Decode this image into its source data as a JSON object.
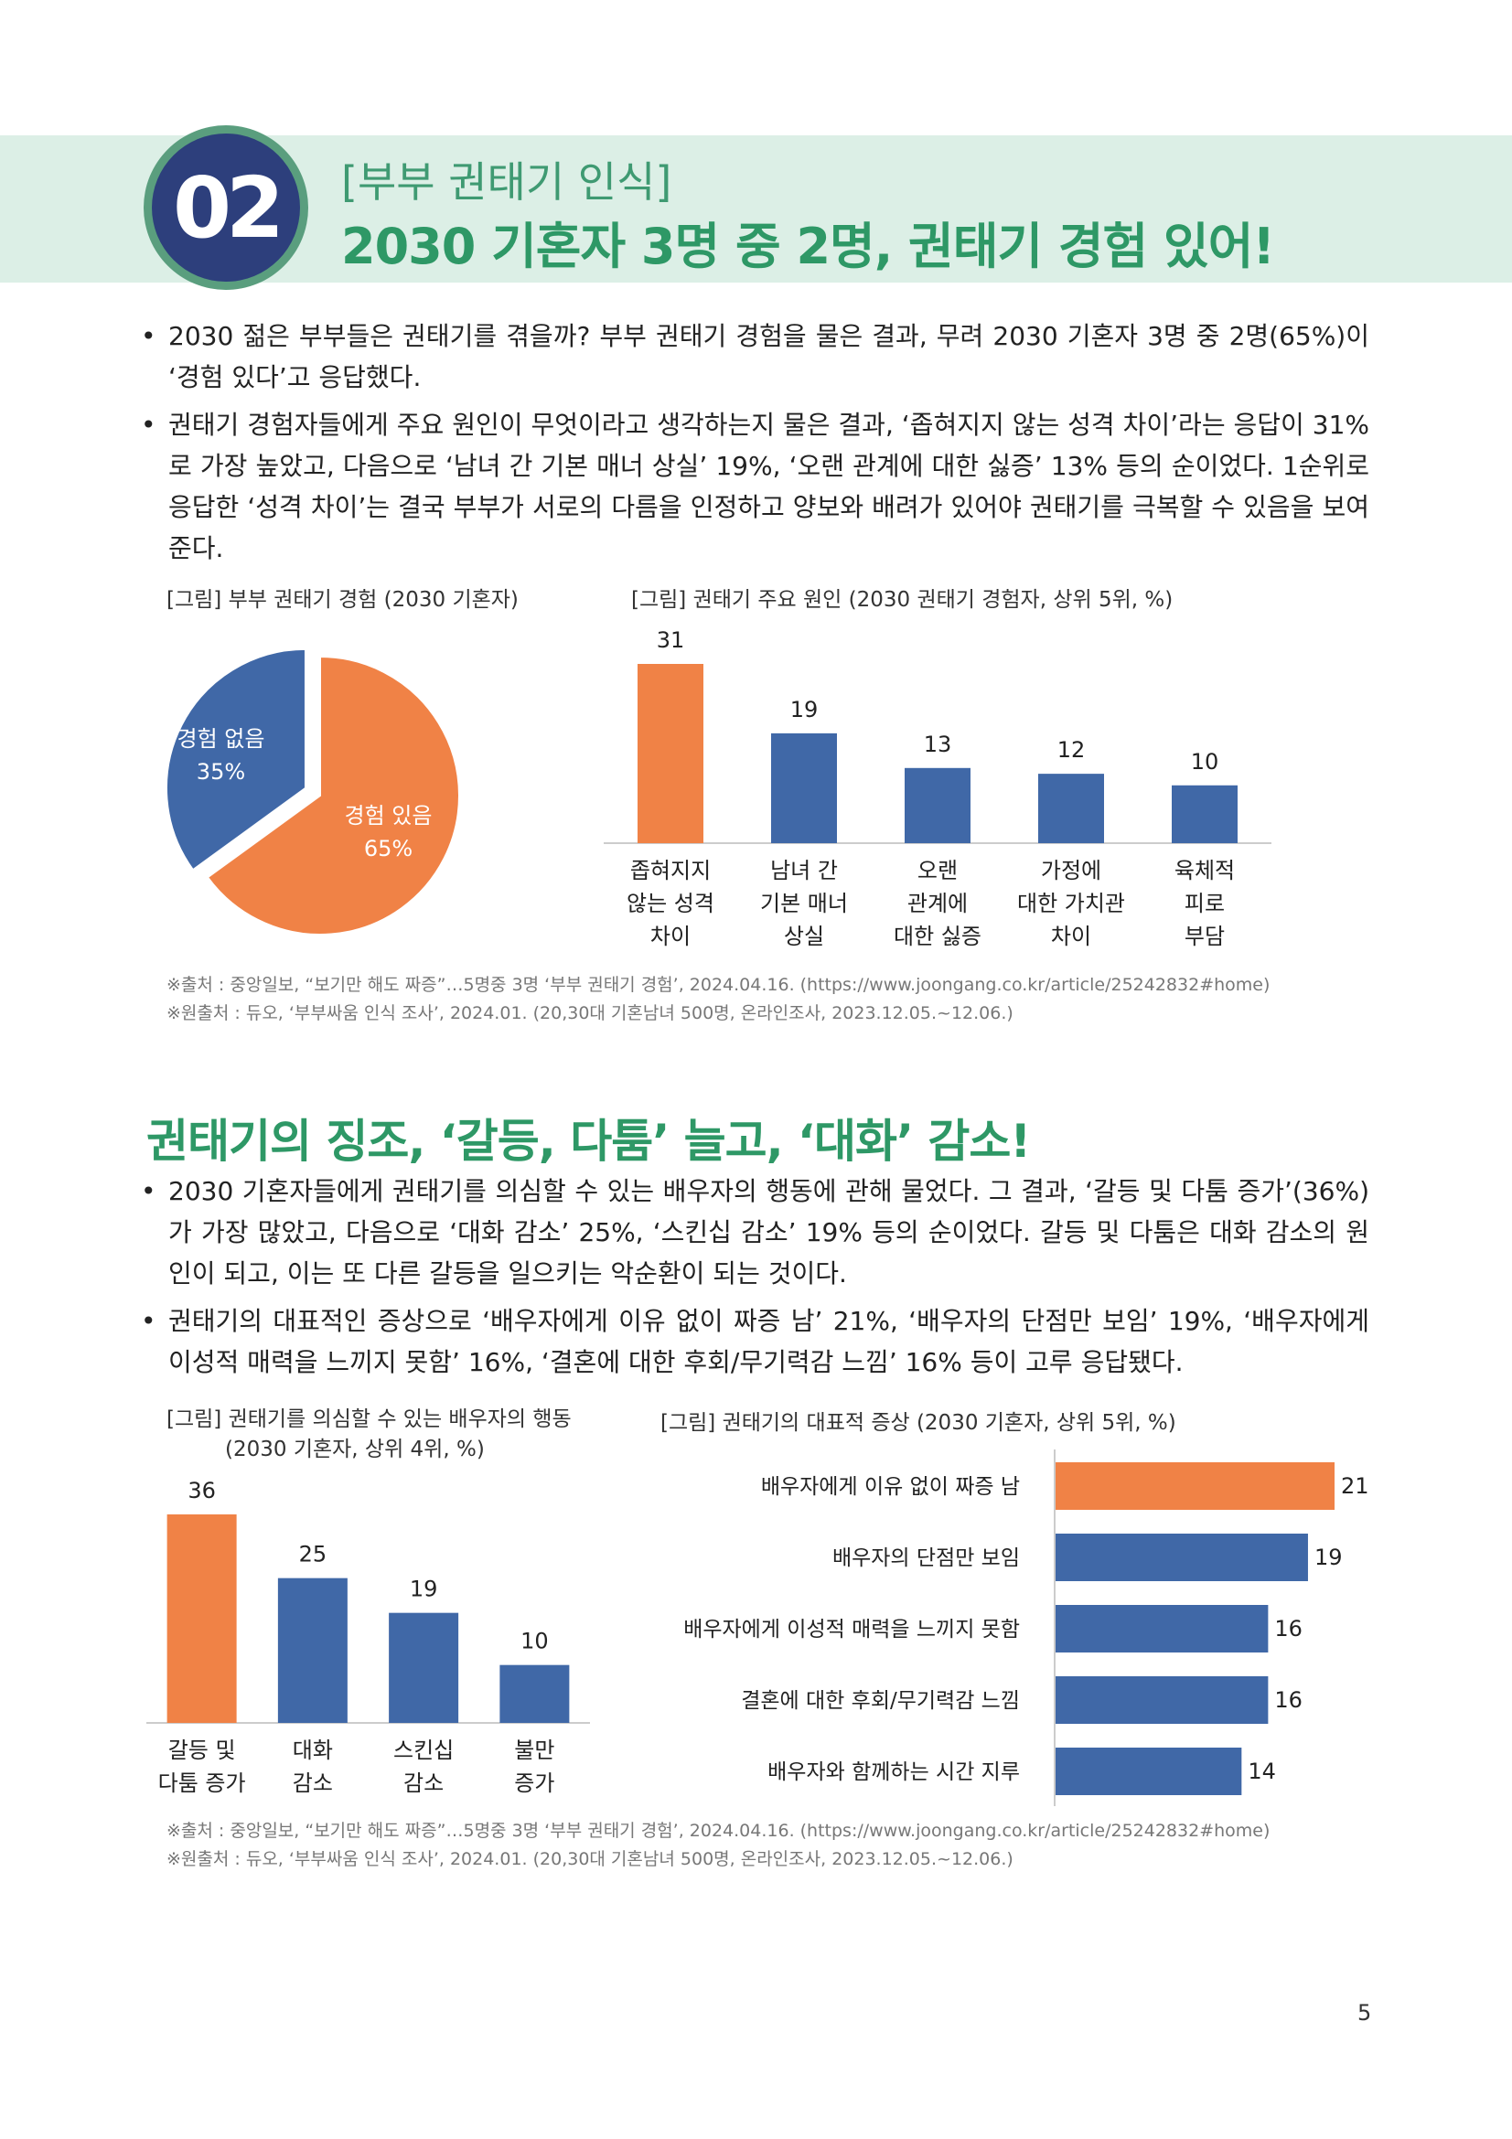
{
  "header": {
    "badge_number": "02",
    "subtitle": "[부부 권태기 인식]",
    "title": "2030 기혼자 3명 중 2명, 권태기 경험 있어!"
  },
  "section1": {
    "bullets": [
      "2030 젊은 부부들은 권태기를 겪을까? 부부 권태기 경험을 물은 결과, 무려 2030 기혼자 3명 중 2명(65%)이 ‘경험 있다’고 응답했다.",
      "권태기 경험자들에게 주요 원인이 무엇이라고 생각하는지 물은 결과, ‘좁혀지지 않는 성격 차이’라는 응답이 31%로 가장 높았고, 다음으로 ‘남녀 간 기본 매너 상실’ 19%, ‘오랜 관계에 대한 싫증’ 13% 등의 순이었다. 1순위로 응답한 ‘성격 차이’는 결국 부부가 서로의 다름을 인정하고 양보와 배려가 있어야 권태기를 극복할 수 있음을 보여준다."
    ],
    "source": [
      "※출처 : 중앙일보, “보기만 해도 짜증”…5명중 3명 ‘부부 권태기 경험’, 2024.04.16. (https://www.joongang.co.kr/article/25242832#home)",
      "※원출처 : 듀오, ‘부부싸움 인식 조사’, 2024.01. (20,30대 기혼남녀 500명, 온라인조사, 2023.12.05.~12.06.)"
    ]
  },
  "section2": {
    "heading": "권태기의 징조, ‘갈등, 다툼’ 늘고, ‘대화’ 감소!",
    "bullets": [
      "2030 기혼자들에게 권태기를 의심할 수 있는 배우자의 행동에 관해 물었다. 그 결과, ‘갈등 및 다툼 증가’(36%)가 가장 많았고, 다음으로 ‘대화 감소’ 25%, ‘스킨십 감소’ 19% 등의 순이었다. 갈등 및 다툼은 대화 감소의 원인이 되고, 이는 또 다른 갈등을 일으키는 악순환이 되는 것이다.",
      "권태기의 대표적인 증상으로 ‘배우자에게 이유 없이 짜증 남’ 21%, ‘배우자의 단점만 보임’ 19%, ‘배우자에게 이성적 매력을 느끼지 못함’ 16%, ‘결혼에 대한 후회/무기력감 느낌’ 16% 등이 고루 응답됐다."
    ],
    "source": [
      "※출처 : 중앙일보, “보기만 해도 짜증”…5명중 3명 ‘부부 권태기 경험’, 2024.04.16. (https://www.joongang.co.kr/article/25242832#home)",
      "※원출처 : 듀오, ‘부부싸움 인식 조사’, 2024.01. (20,30대 기혼남녀 500명, 온라인조사, 2023.12.05.~12.06.)"
    ]
  },
  "page_number": "5",
  "colors": {
    "orange": "#f08246",
    "blue": "#4068a7",
    "green": "#2e9866",
    "band": "#dcefe6",
    "badge": "#2d3f7c"
  },
  "chart_data": [
    {
      "type": "pie",
      "title": "[그림] 부부 권태기 경험 (2030 기혼자)",
      "slices": [
        {
          "label": [
            "경험 있음",
            "65%"
          ],
          "value": 65,
          "color": "#f08246"
        },
        {
          "label": [
            "경험 없음",
            "35%"
          ],
          "value": 35,
          "color": "#4068a7"
        }
      ]
    },
    {
      "type": "bar",
      "title": "[그림] 권태기 주요 원인 (2030 권태기 경험자, 상위 5위, %)",
      "categories": [
        [
          "좁혀지지",
          "않는 성격",
          "차이"
        ],
        [
          "남녀 간",
          "기본 매너",
          "상실"
        ],
        [
          "오랜",
          "관계에",
          "대한 싫증"
        ],
        [
          "가정에",
          "대한 가치관",
          "차이"
        ],
        [
          "육체적",
          "피로",
          "부담"
        ]
      ],
      "values": [
        31,
        19,
        13,
        12,
        10
      ],
      "colors": [
        "#f08246",
        "#4068a7",
        "#4068a7",
        "#4068a7",
        "#4068a7"
      ],
      "ylim": [
        0,
        31
      ]
    },
    {
      "type": "bar",
      "title": [
        "[그림] 권태기를 의심할 수 있는 배우자의 행동",
        "(2030 기혼자, 상위 4위, %)"
      ],
      "categories": [
        [
          "갈등 및",
          "다툼 증가"
        ],
        [
          "대화",
          "감소"
        ],
        [
          "스킨십",
          "감소"
        ],
        [
          "불만",
          "증가"
        ]
      ],
      "values": [
        36,
        25,
        19,
        10
      ],
      "colors": [
        "#f08246",
        "#4068a7",
        "#4068a7",
        "#4068a7"
      ],
      "ylim": [
        0,
        36
      ]
    },
    {
      "type": "bar",
      "orientation": "horizontal",
      "title": "[그림] 권태기의 대표적 증상 (2030 기혼자, 상위 5위, %)",
      "categories": [
        "배우자에게 이유 없이 짜증 남",
        "배우자의 단점만 보임",
        "배우자에게 이성적 매력을 느끼지 못함",
        "결혼에 대한 후회/무기력감 느낌",
        "배우자와 함께하는 시간 지루"
      ],
      "values": [
        21,
        19,
        16,
        16,
        14
      ],
      "colors": [
        "#f08246",
        "#4068a7",
        "#4068a7",
        "#4068a7",
        "#4068a7"
      ],
      "xlim": [
        0,
        21
      ]
    }
  ]
}
